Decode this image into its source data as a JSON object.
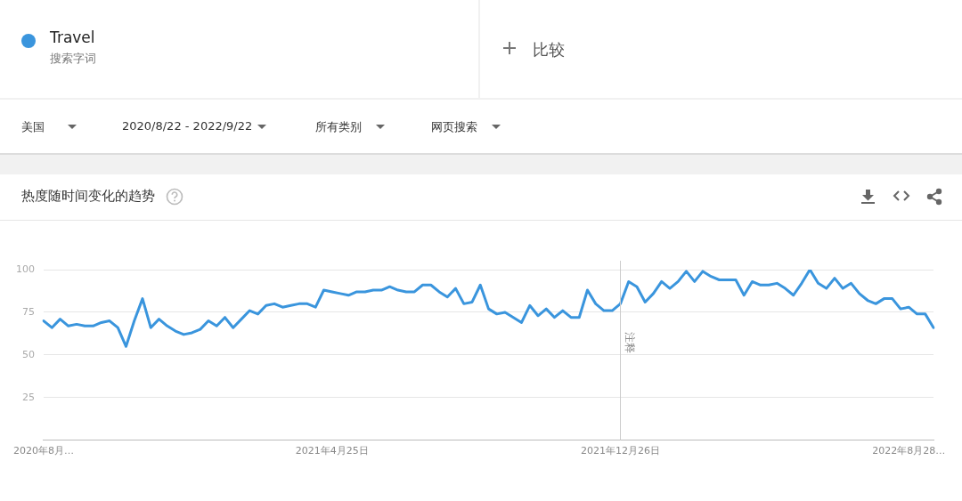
{
  "chart_data": {
    "type": "line",
    "title": "热度随时间变化的趋势",
    "annotations": [
      "搜索字词",
      "比较",
      "美国",
      "2020/8/22 - 2022/9/22",
      "所有类别",
      "网页搜索"
    ],
    "categories": [
      "2020年8月…",
      null,
      null,
      null,
      null,
      null,
      null,
      null,
      null,
      null,
      null,
      null,
      null,
      null,
      null,
      null,
      null,
      null,
      null,
      null,
      null,
      null,
      null,
      null,
      null,
      null,
      null,
      null,
      null,
      null,
      null,
      null,
      null,
      null,
      null,
      "2021年4月25日",
      null,
      null,
      null,
      null,
      null,
      null,
      null,
      null,
      null,
      null,
      null,
      null,
      null,
      null,
      null,
      null,
      null,
      null,
      null,
      null,
      null,
      null,
      null,
      null,
      null,
      null,
      null,
      null,
      null,
      null,
      null,
      null,
      null,
      null,
      "2021年12月26日",
      null,
      null,
      null,
      null,
      null,
      null,
      null,
      null,
      null,
      null,
      null,
      null,
      null,
      null,
      null,
      null,
      null,
      null,
      null,
      null,
      null,
      null,
      null,
      null,
      null,
      null,
      null,
      null,
      null,
      null,
      null,
      null,
      null,
      null,
      "2022年8月28…",
      null,
      null,
      null
    ],
    "series": [
      {
        "name": "Travel",
        "color": "#3a95dd",
        "values": [
          70,
          66,
          71,
          67,
          68,
          67,
          67,
          69,
          70,
          66,
          55,
          70,
          83,
          66,
          71,
          67,
          64,
          62,
          63,
          65,
          70,
          67,
          72,
          66,
          71,
          76,
          74,
          79,
          80,
          78,
          79,
          80,
          80,
          78,
          88,
          87,
          86,
          85,
          87,
          87,
          88,
          88,
          90,
          88,
          87,
          87,
          91,
          91,
          87,
          84,
          89,
          80,
          81,
          91,
          77,
          74,
          75,
          72,
          69,
          79,
          73,
          77,
          72,
          76,
          72,
          72,
          88,
          80,
          76,
          76,
          80,
          93,
          90,
          81,
          86,
          93,
          89,
          93,
          99,
          93,
          99,
          96,
          94,
          94,
          94,
          85,
          93,
          91,
          91,
          92,
          89,
          85,
          92,
          100,
          92,
          89,
          95,
          89,
          92,
          86,
          82,
          80,
          83,
          83,
          77,
          78,
          74,
          74,
          66
        ]
      }
    ],
    "ylim": [
      0,
      100
    ],
    "yticks": [
      25,
      50,
      75,
      100
    ],
    "grid": "y",
    "legend": "top left",
    "marker": "none",
    "line_style": "solid",
    "ref_lines": [
      {
        "axis": "x",
        "value": "2021年12月26日",
        "label": "注释",
        "color": "#cccccc"
      }
    ]
  }
}
